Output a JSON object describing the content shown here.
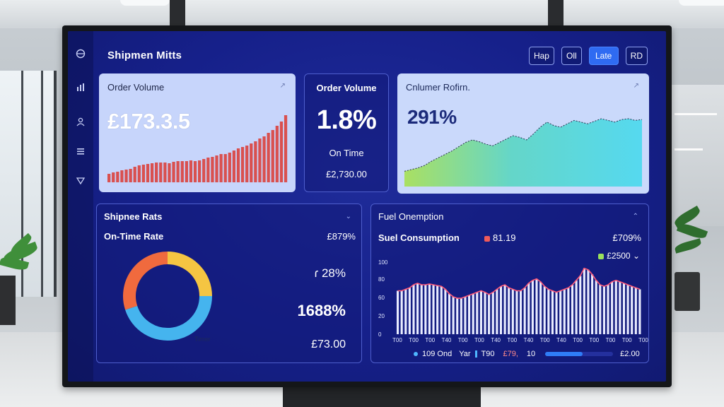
{
  "header": {
    "title": "Shipmen Mitts"
  },
  "top_buttons": [
    {
      "label": "Hap",
      "active": false
    },
    {
      "label": "Oll",
      "active": false
    },
    {
      "label": "Late",
      "active": true
    },
    {
      "label": "RD",
      "active": false
    }
  ],
  "sidebar": {
    "icons": [
      "globe-icon",
      "bar-chart-icon",
      "user-icon",
      "list-icon",
      "filter-icon"
    ]
  },
  "cards": {
    "order_volume_chart": {
      "title": "Order Volume",
      "value": "£173.3.5",
      "series_color": "#d9504f",
      "values": [
        12,
        14,
        15,
        17,
        18,
        19,
        22,
        24,
        25,
        26,
        27,
        28,
        28,
        28,
        27,
        29,
        30,
        30,
        30,
        31,
        30,
        31,
        33,
        35,
        36,
        38,
        40,
        40,
        42,
        45,
        48,
        50,
        52,
        55,
        58,
        62,
        65,
        70,
        74,
        80,
        86,
        95
      ]
    },
    "order_volume_kpi": {
      "title": "Order Volume",
      "value": "1.8%",
      "subtitle": "On Time",
      "amount": "£2,730.00"
    },
    "consumer_perf": {
      "title": "Cnlumer Rofirn.",
      "value": "291%",
      "values": [
        18,
        20,
        22,
        25,
        30,
        34,
        38,
        42,
        47,
        52,
        55,
        53,
        50,
        48,
        52,
        56,
        60,
        58,
        55,
        62,
        70,
        76,
        72,
        70,
        74,
        78,
        76,
        74,
        77,
        80,
        78,
        76,
        79,
        80,
        78,
        79
      ]
    },
    "shipment_rate": {
      "title": "Shipnee Rats",
      "subtitle": "On-Time Rate",
      "top_value": "£879%",
      "mid_value": "ɾ 28%",
      "big_value": "1688%",
      "amount": "£73.00",
      "donut_label": "Timer",
      "donut": [
        {
          "value": 25,
          "color": "#f5c542"
        },
        {
          "value": 45,
          "color": "#45b4ee"
        },
        {
          "value": 30,
          "color": "#f06a3e"
        }
      ]
    },
    "fuel": {
      "title": "Fuel Onemption",
      "subtitle": "Suel Consumption",
      "legend_a": "81.19",
      "legend_a_color": "#f05a5a",
      "top_value": "£709%",
      "legend_b": "£2500",
      "legend_b_color": "#9ae05c",
      "y_ticks": [
        "100",
        "80",
        "60",
        "20",
        "0"
      ],
      "x_ticks": [
        "T00",
        "T00",
        "T00",
        "T40",
        "T00",
        "T00",
        "T40",
        "T00",
        "T40",
        "T00",
        "T40",
        "T00",
        "T00",
        "T00",
        "T00",
        "T00"
      ],
      "values": [
        58,
        58,
        60,
        62,
        66,
        68,
        66,
        66,
        67,
        66,
        65,
        64,
        60,
        54,
        50,
        48,
        48,
        50,
        52,
        54,
        56,
        58,
        56,
        53,
        56,
        60,
        64,
        66,
        62,
        60,
        58,
        58,
        62,
        68,
        72,
        74,
        70,
        64,
        60,
        58,
        56,
        58,
        60,
        62,
        66,
        72,
        78,
        88,
        86,
        80,
        72,
        66,
        64,
        66,
        70,
        72,
        70,
        68,
        66,
        64,
        62,
        60
      ]
    },
    "fuel_footer": {
      "item_1": "109 Ond",
      "item_2": "Yar",
      "item_3": "T90",
      "item_4": "£79,",
      "item_5": "10",
      "amount": "£2.00",
      "progress": 0.55
    }
  }
}
